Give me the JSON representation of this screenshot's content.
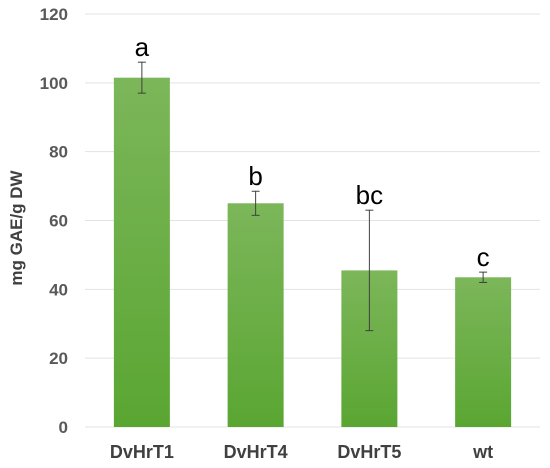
{
  "chart_data": {
    "type": "bar",
    "categories": [
      "DvHrT1",
      "DvHrT4",
      "DvHrT5",
      "wt"
    ],
    "values": [
      101.5,
      65,
      45.5,
      43.5
    ],
    "error": [
      4.5,
      3.5,
      17.5,
      1.5
    ],
    "significance": [
      "a",
      "b",
      "bc",
      "c"
    ],
    "ylabel": "mg GAE/g DW",
    "ylim": [
      0,
      120
    ],
    "yticks": [
      0,
      20,
      40,
      60,
      80,
      100,
      120
    ],
    "grid": true,
    "bar_color_top": "#7cb65a",
    "bar_color_bottom": "#5aa632"
  }
}
